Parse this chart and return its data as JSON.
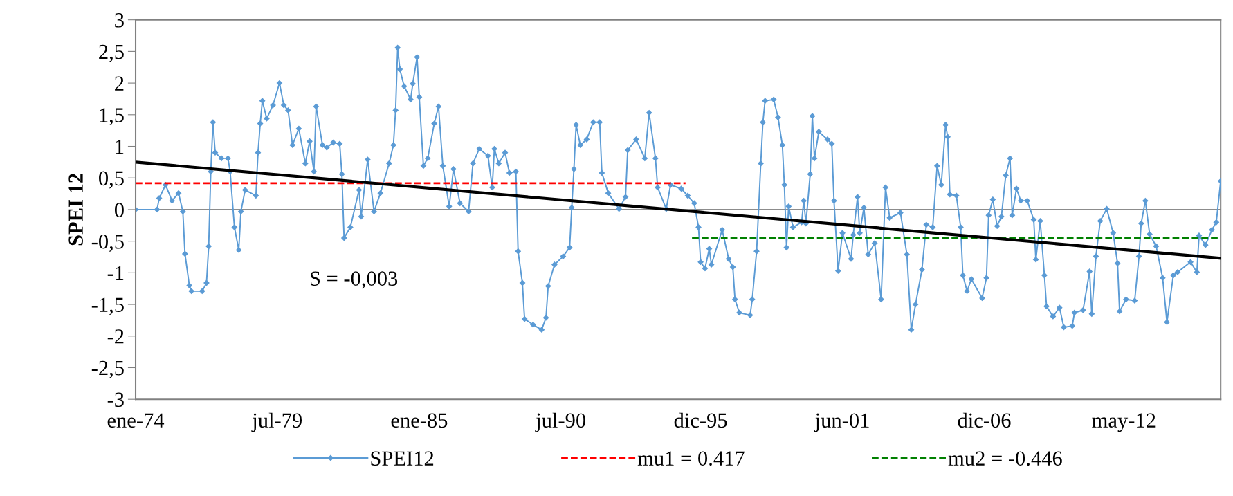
{
  "chart_data": {
    "type": "line",
    "ylabel": "SPEI 12",
    "xlim": [
      "1974-01",
      "2016-02"
    ],
    "xticks": [
      {
        "value": "1974-01",
        "label": "ene-74"
      },
      {
        "value": "1979-07",
        "label": "jul-79"
      },
      {
        "value": "1985-01",
        "label": "ene-85"
      },
      {
        "value": "1990-07",
        "label": "jul-90"
      },
      {
        "value": "1995-12",
        "label": "dic-95"
      },
      {
        "value": "2001-06",
        "label": "jun-01"
      },
      {
        "value": "2006-12",
        "label": "dic-06"
      },
      {
        "value": "2012-05",
        "label": "may-12"
      }
    ],
    "ylim": [
      -3,
      3
    ],
    "yticks": [
      -3,
      {
        "value": -2.5,
        "label": "-2,5"
      },
      -2,
      {
        "value": -1.5,
        "label": "-1,5"
      },
      -1,
      {
        "value": -0.5,
        "label": "-0,5"
      },
      0,
      {
        "value": 0.5,
        "label": "0,5"
      },
      1,
      {
        "value": 1.5,
        "label": "1,5"
      },
      2,
      {
        "value": 2.5,
        "label": "2,5"
      },
      3
    ],
    "grid": false,
    "legend": "bottom",
    "ref_lines": [
      {
        "axis": "y",
        "value": 0,
        "color": "#8c8c8c"
      }
    ],
    "annotations": [
      "S = -0,003"
    ],
    "series": [
      {
        "name": "SPEI12",
        "color": "#5b9bd5",
        "marker": "diamond",
        "line_style": "solid",
        "x": [
          "1974-01",
          "1974-11",
          "1974-12",
          "1975-03",
          "1975-06",
          "1975-09",
          "1975-11",
          "1975-12",
          "1976-02",
          "1976-03",
          "1976-08",
          "1976-10",
          "1976-11",
          "1976-12",
          "1977-01",
          "1977-02",
          "1977-05",
          "1977-08",
          "1977-09",
          "1977-11",
          "1978-01",
          "1978-02",
          "1978-04",
          "1978-09",
          "1978-10",
          "1978-11",
          "1978-12",
          "1979-02",
          "1979-05",
          "1979-08",
          "1979-10",
          "1979-12",
          "1980-02",
          "1980-05",
          "1980-08",
          "1980-10",
          "1980-12",
          "1981-01",
          "1981-04",
          "1981-06",
          "1981-09",
          "1981-12",
          "1982-01",
          "1982-02",
          "1982-05",
          "1982-09",
          "1982-10",
          "1983-01",
          "1983-04",
          "1983-07",
          "1983-11",
          "1984-01",
          "1984-02",
          "1984-03",
          "1984-04",
          "1984-06",
          "1984-09",
          "1984-10",
          "1984-12",
          "1985-01",
          "1985-03",
          "1985-05",
          "1985-08",
          "1985-10",
          "1985-12",
          "1986-03",
          "1986-05",
          "1986-08",
          "1986-12",
          "1987-02",
          "1987-05",
          "1987-09",
          "1987-11",
          "1987-12",
          "1988-02",
          "1988-05",
          "1988-07",
          "1988-10",
          "1988-11",
          "1989-01",
          "1989-02",
          "1989-06",
          "1989-10",
          "1989-12",
          "1990-01",
          "1990-04",
          "1990-08",
          "1990-11",
          "1990-12",
          "1991-01",
          "1991-02",
          "1991-04",
          "1991-07",
          "1991-10",
          "1992-01",
          "1992-02",
          "1992-05",
          "1992-10",
          "1993-01",
          "1993-02",
          "1993-06",
          "1993-10",
          "1993-12",
          "1994-03",
          "1994-04",
          "1994-08",
          "1994-10",
          "1995-03",
          "1995-06",
          "1995-09",
          "1995-11",
          "1995-12",
          "1996-02",
          "1996-04",
          "1996-05",
          "1996-10",
          "1997-01",
          "1997-03",
          "1997-04",
          "1997-06",
          "1997-11",
          "1997-12",
          "1998-02",
          "1998-04",
          "1998-05",
          "1998-06",
          "1998-10",
          "1998-12",
          "1999-02",
          "1999-03",
          "1999-04",
          "1999-05",
          "1999-07",
          "1999-11",
          "1999-12",
          "2000-01",
          "2000-03",
          "2000-04",
          "2000-05",
          "2000-07",
          "2000-11",
          "2001-01",
          "2001-02",
          "2001-04",
          "2001-06",
          "2001-10",
          "2001-11",
          "2002-01",
          "2002-02",
          "2002-04",
          "2002-06",
          "2002-09",
          "2002-12",
          "2003-02",
          "2003-04",
          "2003-09",
          "2003-12",
          "2004-02",
          "2004-04",
          "2004-07",
          "2004-09",
          "2004-12",
          "2005-02",
          "2005-04",
          "2005-06",
          "2005-07",
          "2005-08",
          "2005-11",
          "2006-01",
          "2006-02",
          "2006-04",
          "2006-06",
          "2006-11",
          "2007-01",
          "2007-02",
          "2007-04",
          "2007-06",
          "2007-08",
          "2007-10",
          "2007-12",
          "2008-01",
          "2008-03",
          "2008-05",
          "2008-08",
          "2008-11",
          "2008-12",
          "2009-02",
          "2009-04",
          "2009-05",
          "2009-08",
          "2009-11",
          "2010-01",
          "2010-05",
          "2010-06",
          "2010-10",
          "2011-01",
          "2011-02",
          "2011-04",
          "2011-06",
          "2011-09",
          "2011-12",
          "2012-02",
          "2012-03",
          "2012-06",
          "2012-10",
          "2012-12",
          "2013-01",
          "2013-03",
          "2013-05",
          "2013-08",
          "2013-11",
          "2014-01",
          "2014-04",
          "2014-06",
          "2014-12",
          "2015-03",
          "2015-04",
          "2015-07",
          "2015-10",
          "2015-12",
          "2016-02"
        ],
        "values": [
          0,
          0,
          0.18,
          0.39,
          0.14,
          0.26,
          -0.03,
          -0.7,
          -1.2,
          -1.29,
          -1.29,
          -1.16,
          -0.58,
          0.6,
          1.38,
          0.9,
          0.81,
          0.81,
          0.6,
          -0.28,
          -0.64,
          -0.03,
          0.31,
          0.22,
          0.9,
          1.36,
          1.72,
          1.44,
          1.65,
          2.0,
          1.65,
          1.57,
          1.02,
          1.28,
          0.73,
          1.08,
          0.6,
          1.63,
          1.02,
          0.98,
          1.06,
          1.04,
          0.56,
          -0.45,
          -0.28,
          0.31,
          -0.11,
          0.79,
          -0.03,
          0.26,
          0.73,
          1.02,
          1.57,
          2.56,
          2.22,
          1.95,
          1.74,
          1.99,
          2.41,
          1.78,
          0.69,
          0.81,
          1.36,
          1.63,
          0.69,
          0.05,
          0.64,
          0.1,
          -0.03,
          0.73,
          0.96,
          0.85,
          0.35,
          0.96,
          0.73,
          0.9,
          0.58,
          0.6,
          -0.66,
          -1.16,
          -1.73,
          -1.82,
          -1.9,
          -1.71,
          -1.21,
          -0.87,
          -0.74,
          -0.6,
          0.03,
          0.64,
          1.34,
          1.02,
          1.11,
          1.38,
          1.38,
          0.58,
          0.26,
          0.01,
          0.2,
          0.94,
          1.11,
          0.81,
          1.53,
          0.81,
          0.35,
          0.01,
          0.39,
          0.33,
          0.22,
          0.1,
          -0.28,
          -0.83,
          -0.93,
          -0.62,
          -0.87,
          -0.32,
          -0.78,
          -0.91,
          -1.42,
          -1.63,
          -1.67,
          -1.42,
          -0.66,
          0.73,
          1.38,
          1.72,
          1.74,
          1.46,
          1.02,
          0.39,
          -0.6,
          0.05,
          -0.28,
          -0.2,
          0.14,
          -0.22,
          0.56,
          1.48,
          0.81,
          1.23,
          1.11,
          1.04,
          0.14,
          -0.97,
          -0.37,
          -0.78,
          -0.4,
          0.2,
          -0.37,
          0.03,
          -0.71,
          -0.53,
          -1.42,
          0.35,
          -0.13,
          -0.05,
          -0.71,
          -1.9,
          -1.5,
          -0.95,
          -0.24,
          -0.28,
          0.69,
          0.39,
          1.34,
          1.15,
          0.24,
          0.22,
          -0.28,
          -1.04,
          -1.29,
          -1.1,
          -1.4,
          -1.08,
          -0.09,
          0.16,
          -0.26,
          -0.11,
          0.54,
          0.81,
          -0.09,
          0.33,
          0.14,
          0.14,
          -0.16,
          -0.79,
          -0.18,
          -1.04,
          -1.53,
          -1.69,
          -1.55,
          -1.86,
          -1.84,
          -1.63,
          -1.59,
          -0.98,
          -1.65,
          -0.74,
          -0.18,
          0.01,
          -0.37,
          -0.85,
          -1.61,
          -1.42,
          -1.44,
          -0.74,
          -0.22,
          0.14,
          -0.39,
          -0.58,
          -1.08,
          -1.78,
          -1.04,
          -0.99,
          -0.83,
          -0.99,
          -0.41,
          -0.56,
          -0.32,
          -0.2,
          0.45
        ]
      },
      {
        "name": "mu1 = 0.417",
        "color": "#ff0000",
        "line_style": "dashed",
        "x": [
          "1974-01",
          "1995-05"
        ],
        "values": [
          0.417,
          0.417
        ]
      },
      {
        "name": "mu2 = -0.446",
        "color": "#008000",
        "line_style": "dashed",
        "x": [
          "1995-08",
          "2016-02"
        ],
        "values": [
          -0.446,
          -0.446
        ]
      },
      {
        "color": "#000000",
        "line_style": "solid",
        "x": [
          "1974-01",
          "2016-02"
        ],
        "values": [
          0.75,
          -0.77
        ]
      }
    ]
  }
}
